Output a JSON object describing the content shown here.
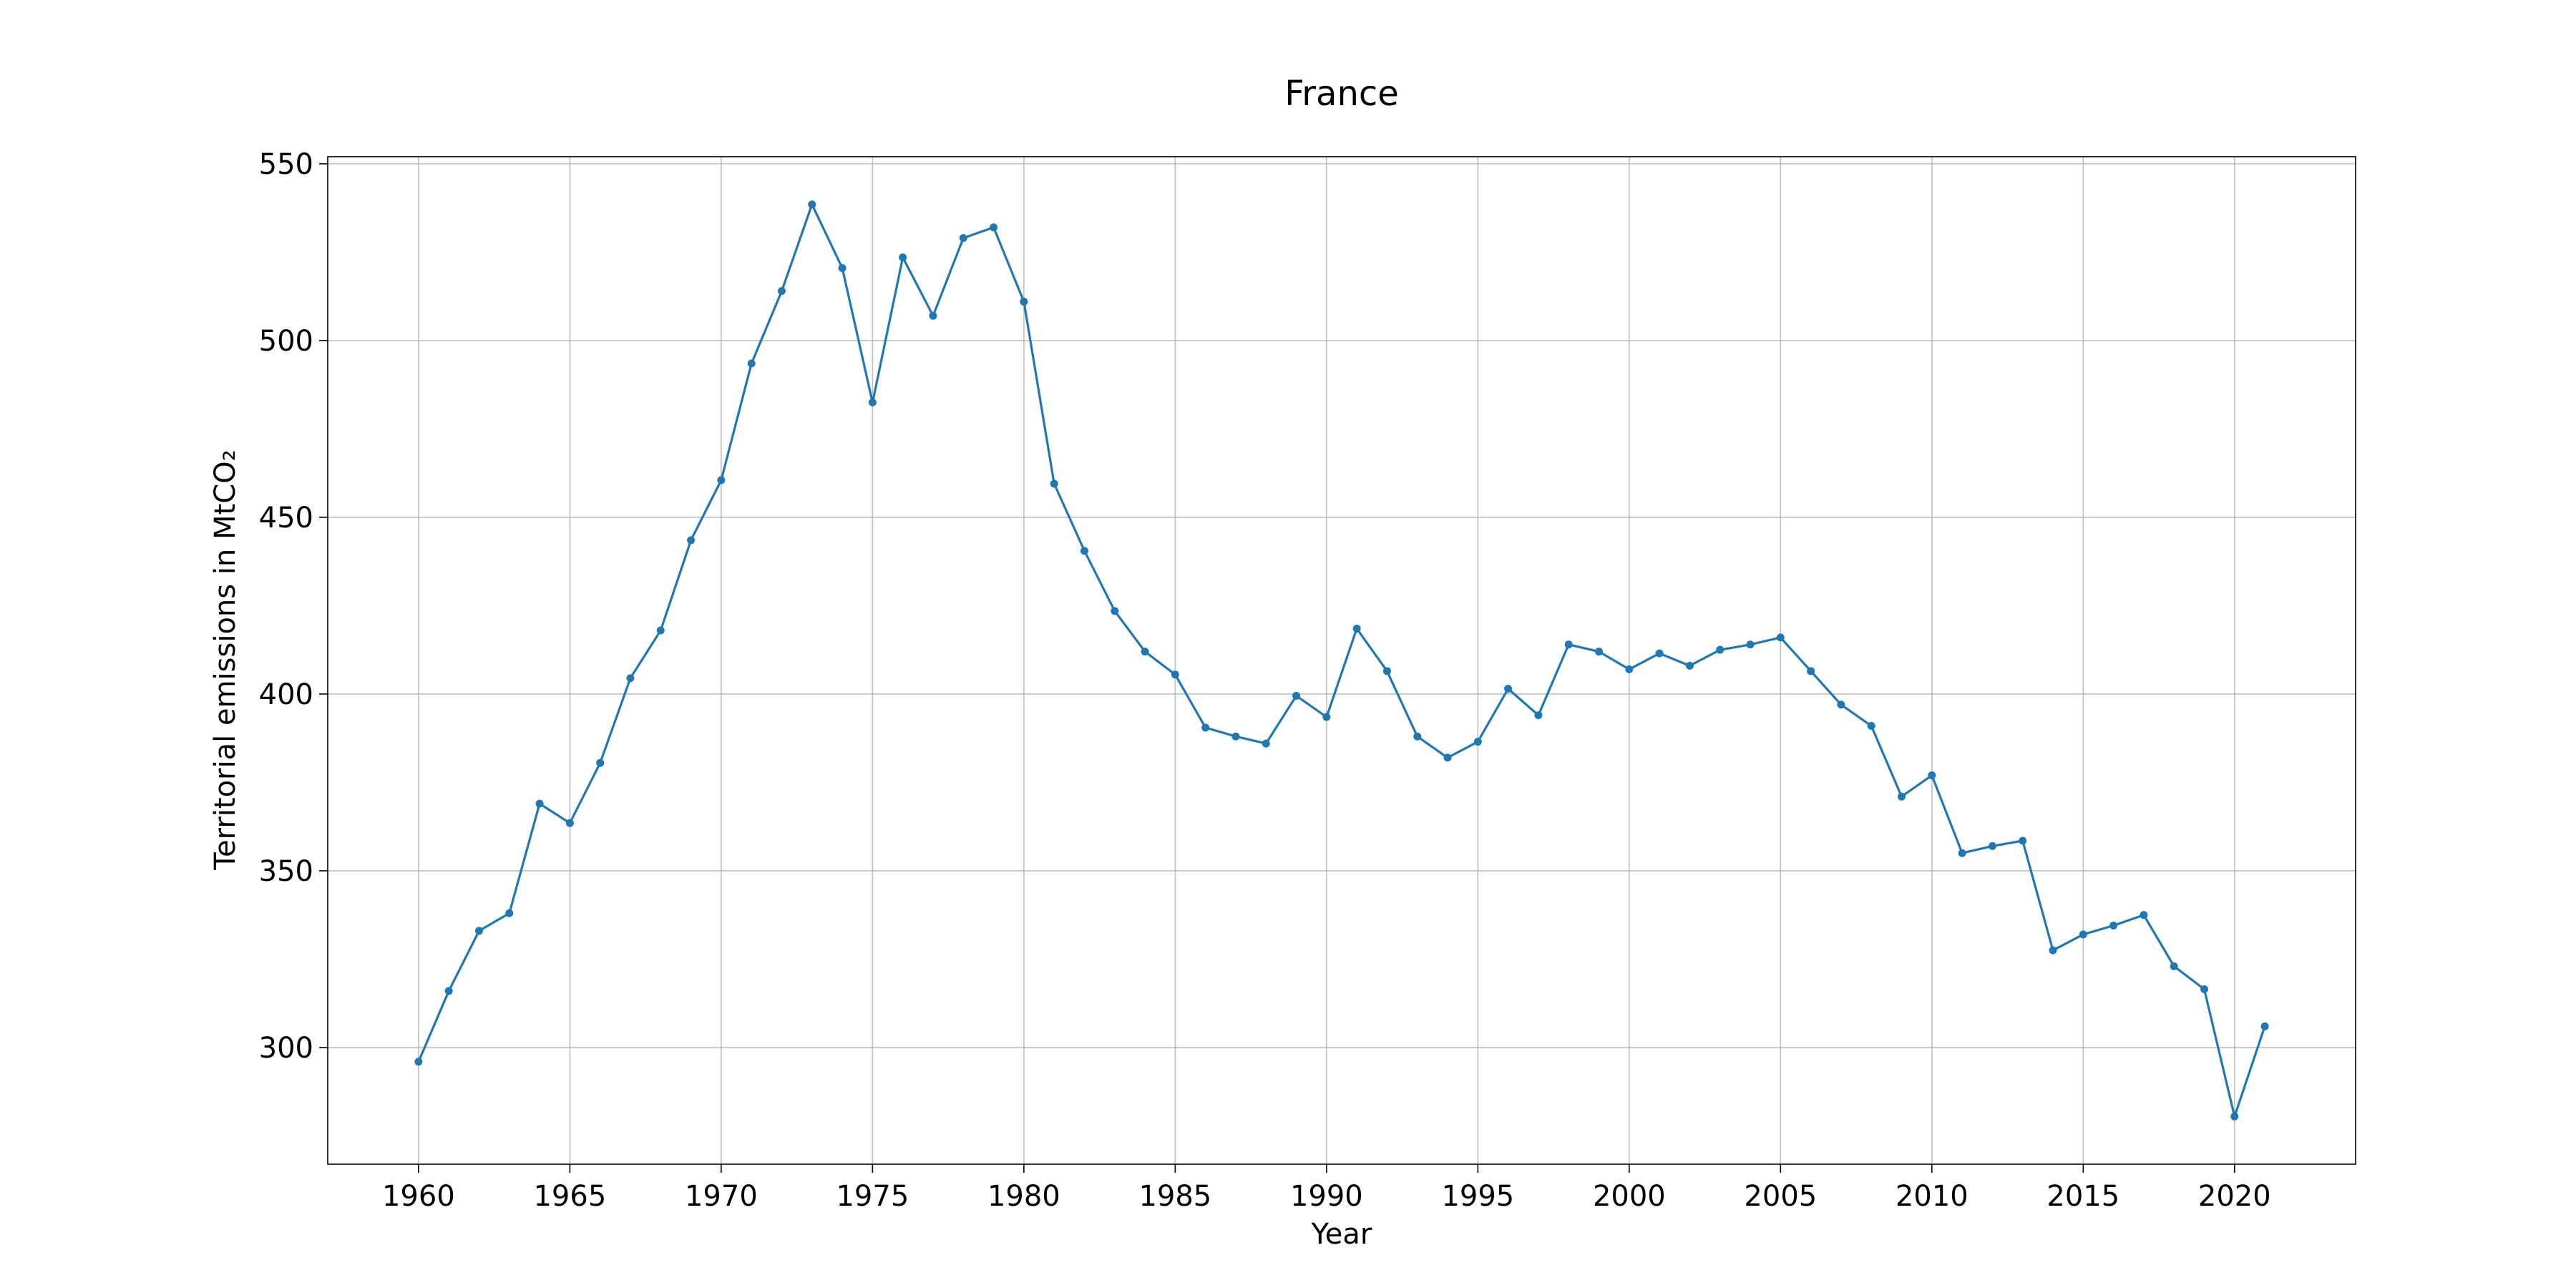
{
  "chart_data": {
    "type": "line",
    "title": "France",
    "xlabel": "Year",
    "ylabel": "Territorial emissions in MtCO₂",
    "xlim": [
      1957,
      2024
    ],
    "ylim": [
      267,
      552
    ],
    "grid": true,
    "line_color": "#1f77b4",
    "x_ticks": [
      1960,
      1965,
      1970,
      1975,
      1980,
      1985,
      1990,
      1995,
      2000,
      2005,
      2010,
      2015,
      2020
    ],
    "y_ticks": [
      300,
      350,
      400,
      450,
      500,
      550
    ],
    "series": [
      {
        "x": [
          1960,
          1961,
          1962,
          1963,
          1964,
          1965,
          1966,
          1967,
          1968,
          1969,
          1970,
          1971,
          1972,
          1973,
          1974,
          1975,
          1976,
          1977,
          1978,
          1979,
          1980,
          1981,
          1982,
          1983,
          1984,
          1985,
          1986,
          1987,
          1988,
          1989,
          1990,
          1991,
          1992,
          1993,
          1994,
          1995,
          1996,
          1997,
          1998,
          1999,
          2000,
          2001,
          2002,
          2003,
          2004,
          2005,
          2006,
          2007,
          2008,
          2009,
          2010,
          2011,
          2012,
          2013,
          2014,
          2015,
          2016,
          2017,
          2018,
          2019,
          2020,
          2021
        ],
        "y": [
          296,
          316,
          333,
          338,
          369,
          363.5,
          380.5,
          404.5,
          418,
          443.5,
          460.5,
          493.5,
          514,
          538.5,
          520.5,
          482.5,
          523.5,
          507,
          529,
          532,
          511,
          459.5,
          440.5,
          423.5,
          412,
          405.5,
          390.5,
          388,
          386,
          399.5,
          393.5,
          418.5,
          406.5,
          388,
          382,
          386.5,
          401.5,
          394,
          414,
          412,
          407,
          411.5,
          408,
          412.5,
          414,
          416,
          406.5,
          397,
          391,
          371,
          377,
          355,
          357,
          358.5,
          327.5,
          332,
          334.5,
          337.5,
          323,
          316.5,
          280.5,
          306
        ]
      }
    ]
  }
}
